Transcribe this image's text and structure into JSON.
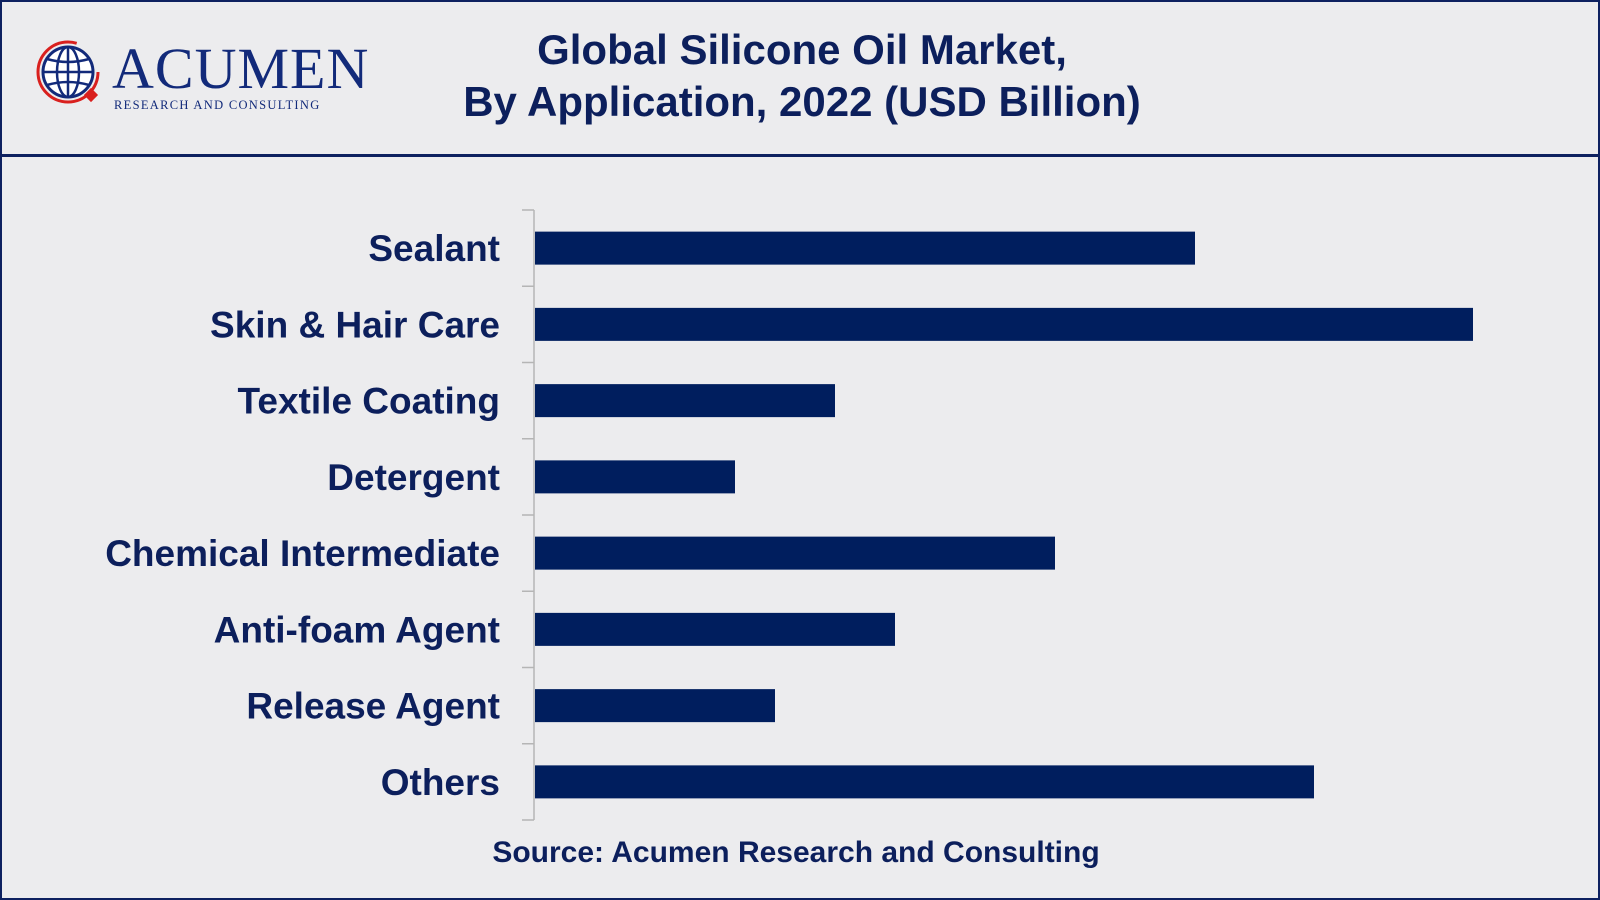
{
  "header": {
    "title_line1": "Global Silicone Oil Market,",
    "title_line2": "By Application, 2022 (USD Billion)",
    "logo_word": "ACUMEN",
    "logo_sub": "RESEARCH AND CONSULTING",
    "logo_icon": "globe-icon"
  },
  "footer": {
    "source": "Source: Acumen Research and Consulting"
  },
  "colors": {
    "bar": "#001e5e",
    "text": "#0c1f5c",
    "background": "#ececee",
    "logo_accent": "#d9201e"
  },
  "chart_data": {
    "type": "bar",
    "orientation": "horizontal",
    "title": "Global Silicone Oil Market, By Application, 2022 (USD Billion)",
    "categories": [
      "Sealant",
      "Skin & Hair Care",
      "Textile Coating",
      "Detergent",
      "Chemical Intermediate",
      "Anti-foam Agent",
      "Release Agent",
      "Others"
    ],
    "values": [
      660,
      938,
      300,
      200,
      520,
      360,
      240,
      779
    ],
    "xlim": [
      0,
      1000
    ],
    "grid": false,
    "value_axis_visible": false,
    "legend": "none"
  }
}
